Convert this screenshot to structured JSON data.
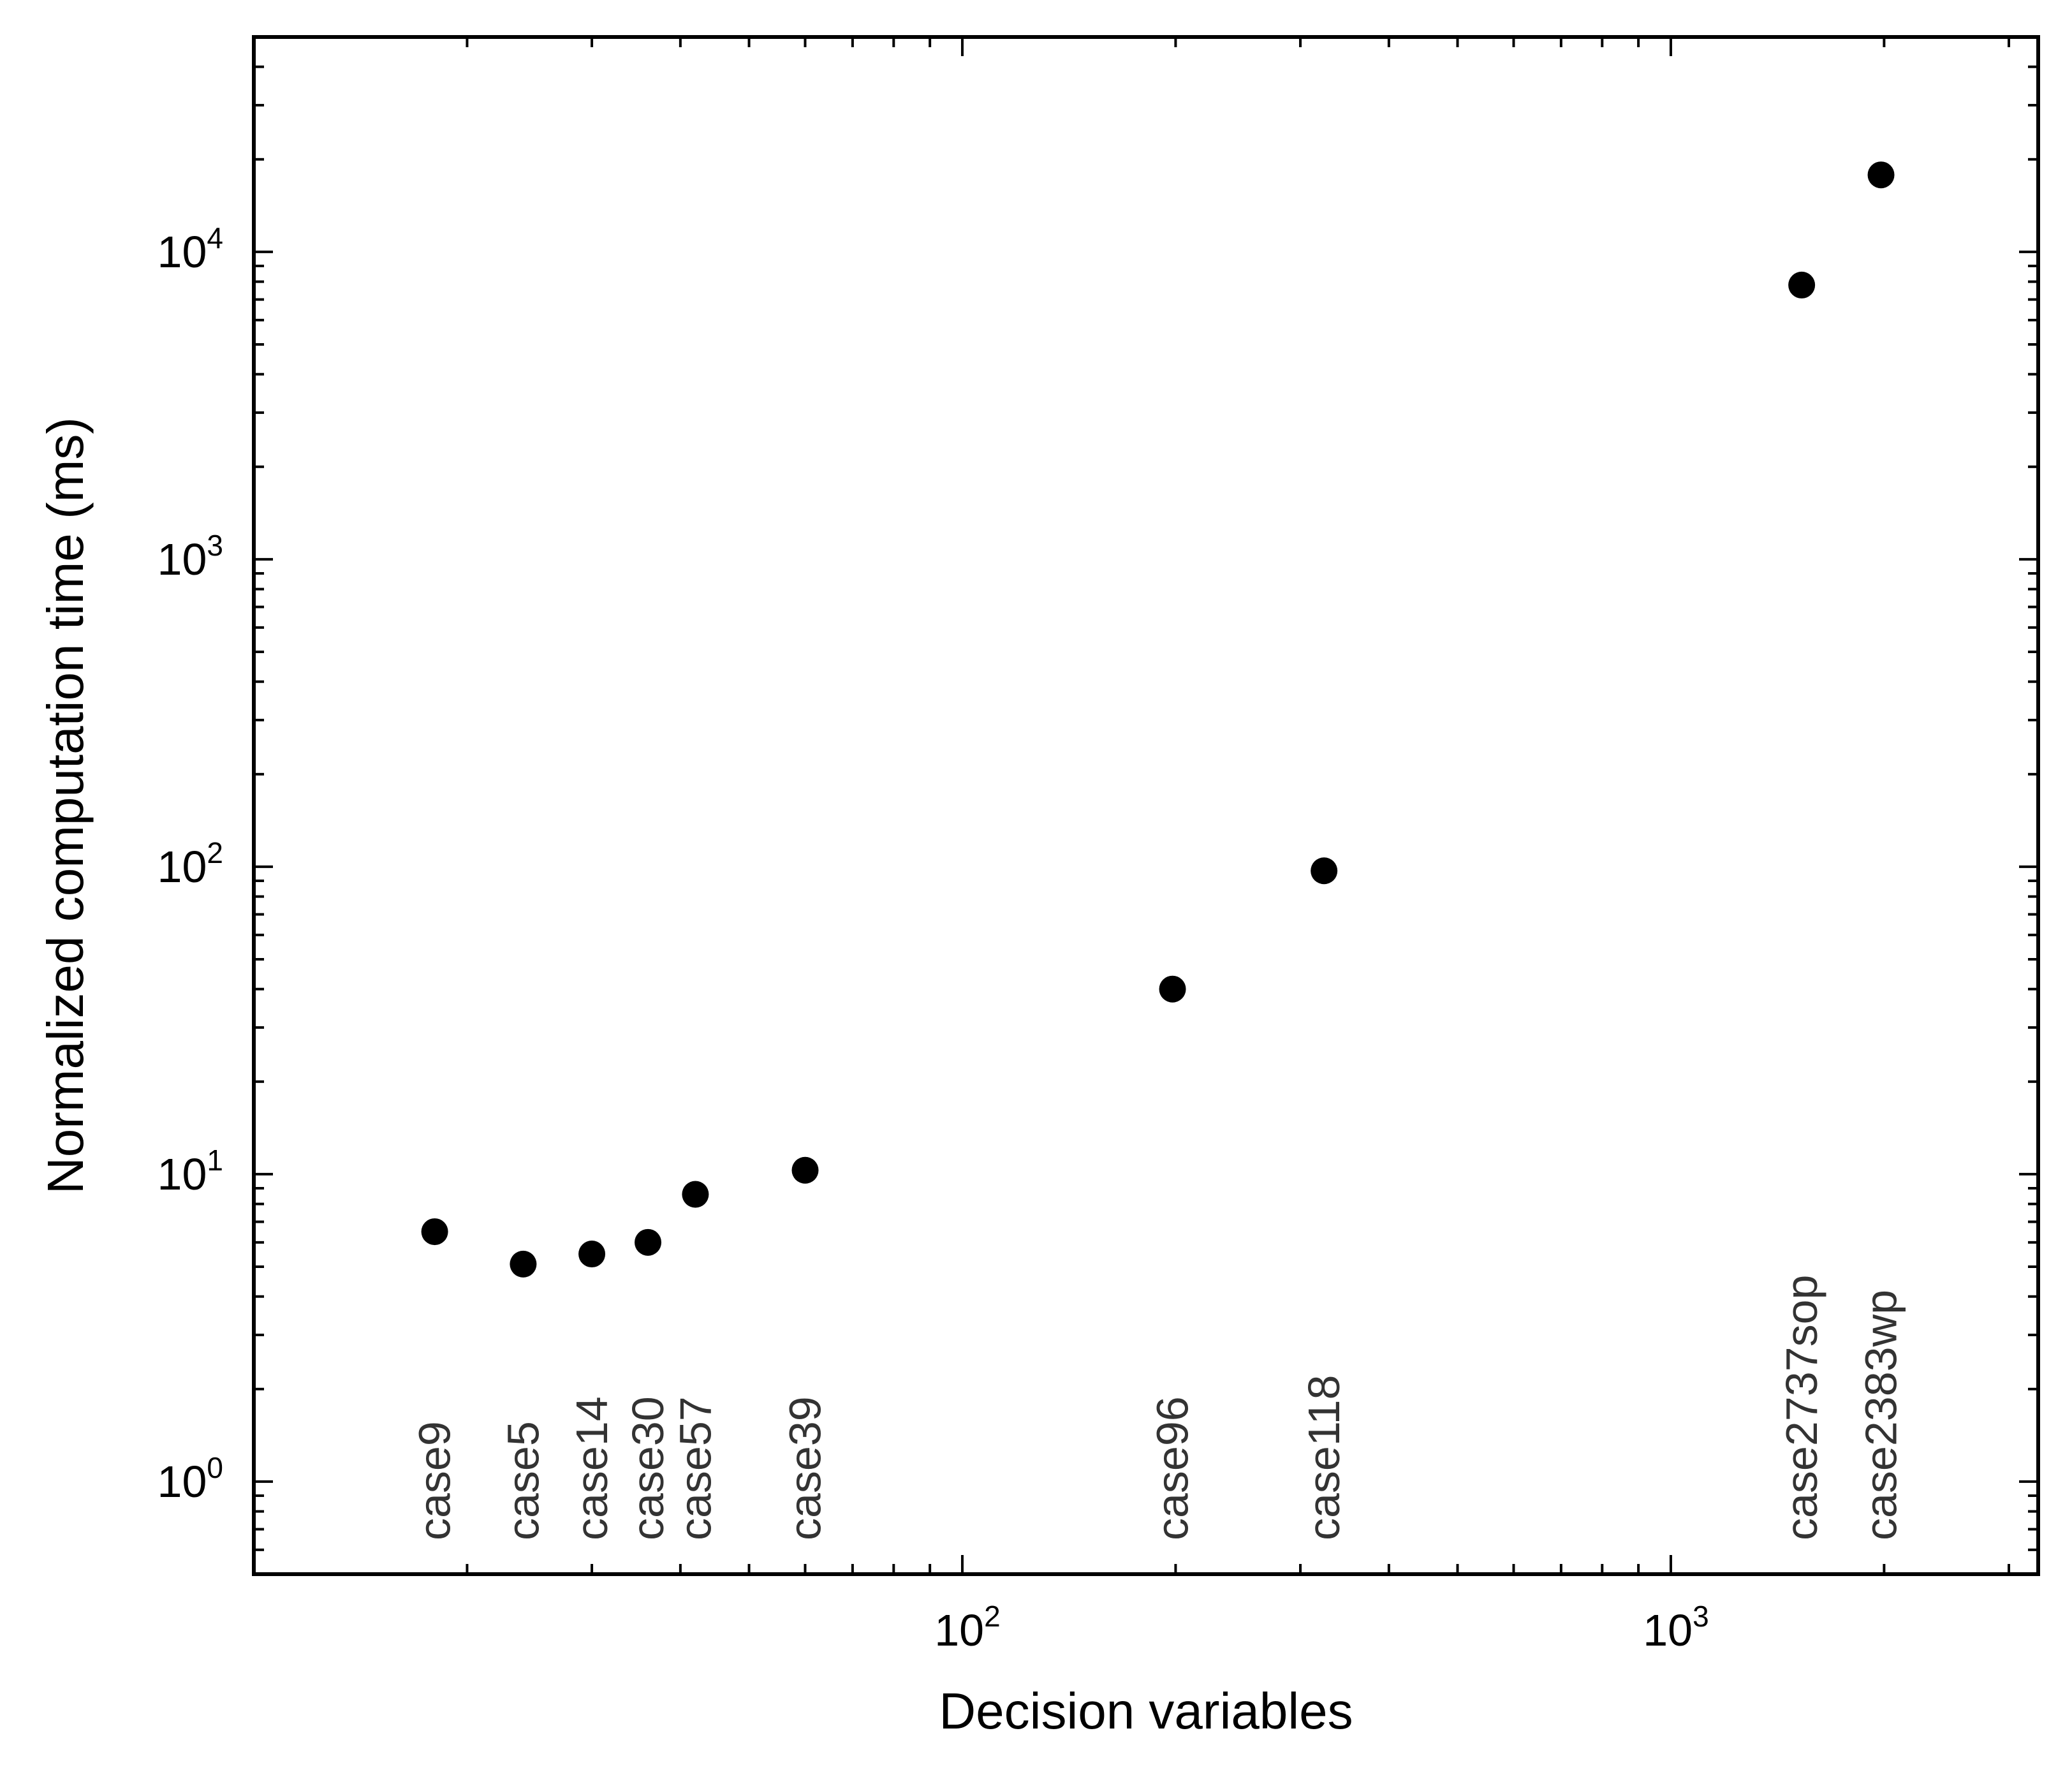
{
  "chart_data": {
    "type": "scatter",
    "title": "",
    "xlabel": "Decision variables",
    "ylabel": "Normalized computation time (ms)",
    "x_scale": "log",
    "y_scale": "log",
    "xlim": [
      10,
      3300
    ],
    "ylim": [
      0.5,
      50000
    ],
    "grid": false,
    "legend": "none",
    "marker_color": "#000000",
    "x_ticks": [
      {
        "value": 100,
        "base": "10",
        "exp": "2"
      },
      {
        "value": 1000,
        "base": "10",
        "exp": "3"
      }
    ],
    "y_ticks": [
      {
        "value": 1,
        "base": "10",
        "exp": "0"
      },
      {
        "value": 10,
        "base": "10",
        "exp": "1"
      },
      {
        "value": 100,
        "base": "10",
        "exp": "2"
      },
      {
        "value": 1000,
        "base": "10",
        "exp": "3"
      },
      {
        "value": 10000,
        "base": "10",
        "exp": "4"
      }
    ],
    "points": [
      {
        "label": "case9",
        "x": 18,
        "y": 6.5
      },
      {
        "label": "case5",
        "x": 24,
        "y": 5.1
      },
      {
        "label": "case14",
        "x": 30,
        "y": 5.5
      },
      {
        "label": "case30",
        "x": 36,
        "y": 6.0
      },
      {
        "label": "case57",
        "x": 42,
        "y": 8.6
      },
      {
        "label": "case39",
        "x": 60,
        "y": 10.3
      },
      {
        "label": "case96",
        "x": 198,
        "y": 40
      },
      {
        "label": "case118",
        "x": 324,
        "y": 97
      },
      {
        "label": "case2737sop",
        "x": 1530,
        "y": 7800
      },
      {
        "label": "case2383wp",
        "x": 1980,
        "y": 17800
      }
    ]
  }
}
